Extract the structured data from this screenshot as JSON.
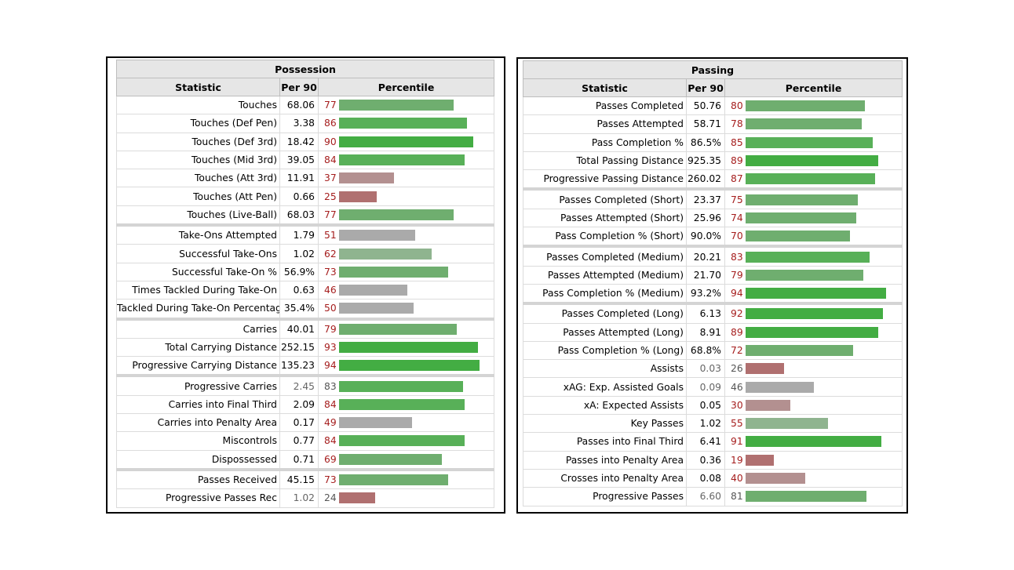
{
  "possession": {
    "title": "Possession",
    "headers": [
      "Statistic",
      "Per 90",
      "Percentile"
    ],
    "rows": [
      {
        "stat": "Touches",
        "per90": "68.06",
        "pct": 77,
        "group_start": false,
        "dim": false
      },
      {
        "stat": "Touches (Def Pen)",
        "per90": "3.38",
        "pct": 86,
        "group_start": false,
        "dim": false
      },
      {
        "stat": "Touches (Def 3rd)",
        "per90": "18.42",
        "pct": 90,
        "group_start": false,
        "dim": false
      },
      {
        "stat": "Touches (Mid 3rd)",
        "per90": "39.05",
        "pct": 84,
        "group_start": false,
        "dim": false
      },
      {
        "stat": "Touches (Att 3rd)",
        "per90": "11.91",
        "pct": 37,
        "group_start": false,
        "dim": false
      },
      {
        "stat": "Touches (Att Pen)",
        "per90": "0.66",
        "pct": 25,
        "group_start": false,
        "dim": false
      },
      {
        "stat": "Touches (Live-Ball)",
        "per90": "68.03",
        "pct": 77,
        "group_start": false,
        "dim": false
      },
      {
        "stat": "Take-Ons Attempted",
        "per90": "1.79",
        "pct": 51,
        "group_start": true,
        "dim": false
      },
      {
        "stat": "Successful Take-Ons",
        "per90": "1.02",
        "pct": 62,
        "group_start": false,
        "dim": false
      },
      {
        "stat": "Successful Take-On %",
        "per90": "56.9%",
        "pct": 73,
        "group_start": false,
        "dim": false
      },
      {
        "stat": "Times Tackled During Take-On",
        "per90": "0.63",
        "pct": 46,
        "group_start": false,
        "dim": false
      },
      {
        "stat": "Tackled During Take-On Percentage",
        "per90": "35.4%",
        "pct": 50,
        "group_start": false,
        "dim": false
      },
      {
        "stat": "Carries",
        "per90": "40.01",
        "pct": 79,
        "group_start": true,
        "dim": false
      },
      {
        "stat": "Total Carrying Distance",
        "per90": "252.15",
        "pct": 93,
        "group_start": false,
        "dim": false
      },
      {
        "stat": "Progressive Carrying Distance",
        "per90": "135.23",
        "pct": 94,
        "group_start": false,
        "dim": false
      },
      {
        "stat": "Progressive Carries",
        "per90": "2.45",
        "pct": 83,
        "group_start": true,
        "dim": true
      },
      {
        "stat": "Carries into Final Third",
        "per90": "2.09",
        "pct": 84,
        "group_start": false,
        "dim": false
      },
      {
        "stat": "Carries into Penalty Area",
        "per90": "0.17",
        "pct": 49,
        "group_start": false,
        "dim": false
      },
      {
        "stat": "Miscontrols",
        "per90": "0.77",
        "pct": 84,
        "group_start": false,
        "dim": false
      },
      {
        "stat": "Dispossessed",
        "per90": "0.71",
        "pct": 69,
        "group_start": false,
        "dim": false
      },
      {
        "stat": "Passes Received",
        "per90": "45.15",
        "pct": 73,
        "group_start": true,
        "dim": false
      },
      {
        "stat": "Progressive Passes Rec",
        "per90": "1.02",
        "pct": 24,
        "group_start": false,
        "dim": true
      }
    ]
  },
  "passing": {
    "title": "Passing",
    "headers": [
      "Statistic",
      "Per 90",
      "Percentile"
    ],
    "rows": [
      {
        "stat": "Passes Completed",
        "per90": "50.76",
        "pct": 80,
        "group_start": false,
        "dim": false
      },
      {
        "stat": "Passes Attempted",
        "per90": "58.71",
        "pct": 78,
        "group_start": false,
        "dim": false
      },
      {
        "stat": "Pass Completion %",
        "per90": "86.5%",
        "pct": 85,
        "group_start": false,
        "dim": false
      },
      {
        "stat": "Total Passing Distance",
        "per90": "925.35",
        "pct": 89,
        "group_start": false,
        "dim": false
      },
      {
        "stat": "Progressive Passing Distance",
        "per90": "260.02",
        "pct": 87,
        "group_start": false,
        "dim": false
      },
      {
        "stat": "Passes Completed (Short)",
        "per90": "23.37",
        "pct": 75,
        "group_start": true,
        "dim": false
      },
      {
        "stat": "Passes Attempted (Short)",
        "per90": "25.96",
        "pct": 74,
        "group_start": false,
        "dim": false
      },
      {
        "stat": "Pass Completion % (Short)",
        "per90": "90.0%",
        "pct": 70,
        "group_start": false,
        "dim": false
      },
      {
        "stat": "Passes Completed (Medium)",
        "per90": "20.21",
        "pct": 83,
        "group_start": true,
        "dim": false
      },
      {
        "stat": "Passes Attempted (Medium)",
        "per90": "21.70",
        "pct": 79,
        "group_start": false,
        "dim": false
      },
      {
        "stat": "Pass Completion % (Medium)",
        "per90": "93.2%",
        "pct": 94,
        "group_start": false,
        "dim": false
      },
      {
        "stat": "Passes Completed (Long)",
        "per90": "6.13",
        "pct": 92,
        "group_start": true,
        "dim": false
      },
      {
        "stat": "Passes Attempted (Long)",
        "per90": "8.91",
        "pct": 89,
        "group_start": false,
        "dim": false
      },
      {
        "stat": "Pass Completion % (Long)",
        "per90": "68.8%",
        "pct": 72,
        "group_start": false,
        "dim": false
      },
      {
        "stat": "Assists",
        "per90": "0.03",
        "pct": 26,
        "group_start": false,
        "dim": true
      },
      {
        "stat": "xAG: Exp. Assisted Goals",
        "per90": "0.09",
        "pct": 46,
        "group_start": false,
        "dim": true
      },
      {
        "stat": "xA: Expected Assists",
        "per90": "0.05",
        "pct": 30,
        "group_start": false,
        "dim": false
      },
      {
        "stat": "Key Passes",
        "per90": "1.02",
        "pct": 55,
        "group_start": false,
        "dim": false
      },
      {
        "stat": "Passes into Final Third",
        "per90": "6.41",
        "pct": 91,
        "group_start": false,
        "dim": false
      },
      {
        "stat": "Passes into Penalty Area",
        "per90": "0.36",
        "pct": 19,
        "group_start": false,
        "dim": false
      },
      {
        "stat": "Crosses into Penalty Area",
        "per90": "0.08",
        "pct": 40,
        "group_start": false,
        "dim": false
      },
      {
        "stat": "Progressive Passes",
        "per90": "6.60",
        "pct": 81,
        "group_start": false,
        "dim": true
      }
    ]
  }
}
